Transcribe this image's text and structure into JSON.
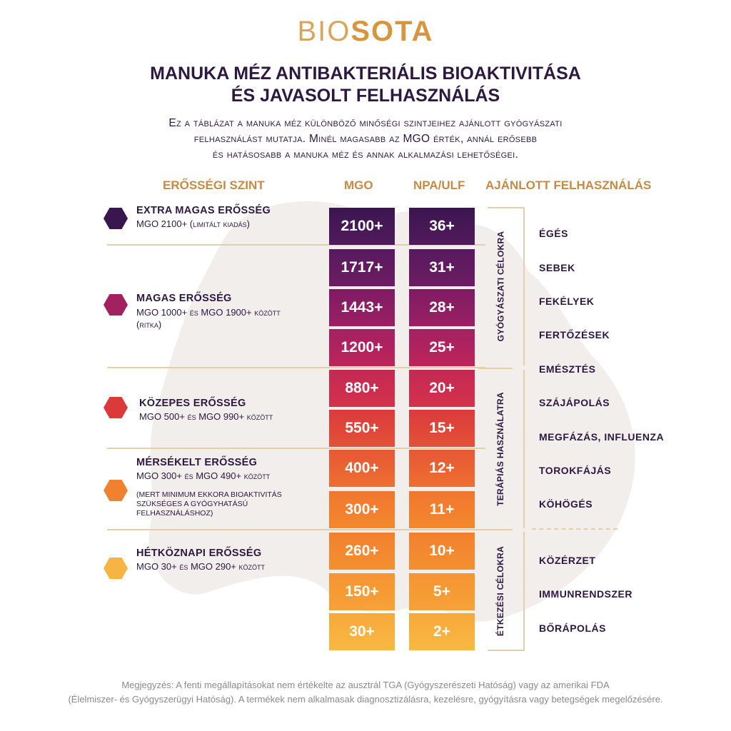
{
  "brand": {
    "logo_light": "BIO",
    "logo_bold": "SOTA"
  },
  "header": {
    "title_line1": "MANUKA MÉZ ANTIBAKTERIÁLIS BIOAKTIVITÁSA",
    "title_line2": "ÉS JAVASOLT FELHASZNÁLÁS",
    "subtitle_line1": "Ez a táblázat a manuka méz különböző minőségi szintjeihez ajánlott gyógyászati",
    "subtitle_line2": "felhasználást mutatja. Minél magasabb az MGO érték, annál erősebb",
    "subtitle_line3": "és hatásosabb a manuka méz és annak alkalmazási lehetőségei."
  },
  "columns": {
    "level": "ERŐSSÉGI SZINT",
    "mgo": "MGO",
    "npa": "NPA/ULF",
    "usage": "AJÁNLOTT FELHASZNÁLÁS"
  },
  "levels": [
    {
      "name": "EXTRA MAGAS ERŐSSÉG",
      "desc_main": "MGO 2100+",
      "desc_sc": " (limitált kiadás)",
      "desc2": "",
      "note": "",
      "color": "#3a1650"
    },
    {
      "name": "MAGAS ERŐSSÉG",
      "desc_main": "MGO 1000+",
      "desc_sc": " és ",
      "desc_main2": "MGO 1900+",
      "desc_sc2": " között",
      "desc2": "(ritka)",
      "note": "",
      "color": "#a4215f"
    },
    {
      "name": "KÖZEPES ERŐSSÉG",
      "desc_main": "MGO 500+",
      "desc_sc": " és ",
      "desc_main2": "MGO 990+",
      "desc_sc2": " között",
      "desc2": "",
      "note": "",
      "color": "#dc3a3a"
    },
    {
      "name": "MÉRSÉKELT ERŐSSÉG",
      "desc_main": "MGO 300+",
      "desc_sc": " és ",
      "desc_main2": "MGO 490+",
      "desc_sc2": " között",
      "desc2": "",
      "note": "(MERT MINIMUM EKKORA BIOAKTIVITÁS SZÜKSÉGES A GYÓGYHATÁSÚ FELHASZNÁLÁSHOZ)",
      "color": "#f0812f"
    },
    {
      "name": "HÉTKÖZNAPI ERŐSSÉG",
      "desc_main": "MGO 30+",
      "desc_sc": " és ",
      "desc_main2": "MGO 290+",
      "desc_sc2": " között",
      "desc2": "",
      "note": "",
      "color": "#f6b443"
    }
  ],
  "grades": [
    {
      "mgo": "2100+",
      "npa": "36+",
      "color_top": "#3a1650",
      "color_bottom": "#521a5c"
    },
    {
      "mgo": "1717+",
      "npa": "31+",
      "color_top": "#561a5e",
      "color_bottom": "#6e1c62"
    },
    {
      "mgo": "1443+",
      "npa": "28+",
      "color_top": "#7d1c63",
      "color_bottom": "#9c1f63"
    },
    {
      "mgo": "1200+",
      "npa": "25+",
      "color_top": "#a42063",
      "color_bottom": "#bd2559"
    },
    {
      "mgo": "880+",
      "npa": "20+",
      "color_top": "#c42855",
      "color_bottom": "#d4324a"
    },
    {
      "mgo": "550+",
      "npa": "15+",
      "color_top": "#da3a3c",
      "color_bottom": "#e45236"
    },
    {
      "mgo": "400+",
      "npa": "12+",
      "color_top": "#e65735",
      "color_bottom": "#ee6f30"
    },
    {
      "mgo": "300+",
      "npa": "11+",
      "color_top": "#f0762f",
      "color_bottom": "#f4872e"
    },
    {
      "mgo": "260+",
      "npa": "10+",
      "color_top": "#f2802f",
      "color_bottom": "#f48f30"
    },
    {
      "mgo": "150+",
      "npa": "5+",
      "color_top": "#f59433",
      "color_bottom": "#f6a236"
    },
    {
      "mgo": "30+",
      "npa": "2+",
      "color_top": "#f7a83a",
      "color_bottom": "#f8b843"
    }
  ],
  "usage_groups": [
    {
      "label": "GYÓGYÁSZATI CÉLOKRA"
    },
    {
      "label": "TERÁPIÁS HASZNÁLATRA"
    },
    {
      "label": "ÉTKEZÉSI CÉLOKRA"
    }
  ],
  "usages": [
    "ÉGÉS",
    "SEBEK",
    "FEKÉLYEK",
    "FERTŐZÉSEK",
    "EMÉSZTÉS",
    "SZÁJÁPOLÁS",
    "MEGFÁZÁS, INFLUENZA",
    "TOROKFÁJÁS",
    "KÖHÖGÉS",
    "KÖZÉRZET",
    "IMMUNRENDSZER",
    "BŐRÁPOLÁS"
  ],
  "footnote": {
    "line1": "Megjegyzés: A fenti megállapításokat nem értékelte az ausztrál TGA (Gyógyszerészeti Hatóság) vagy az amerikai FDA",
    "line2": "(Élelmiszer- és Gyógyszerügyi Hatóság). A termékek nem alkalmasak diagnosztizálásra, kezelésre, gyógyításra vagy betegségek megelőzésére."
  }
}
